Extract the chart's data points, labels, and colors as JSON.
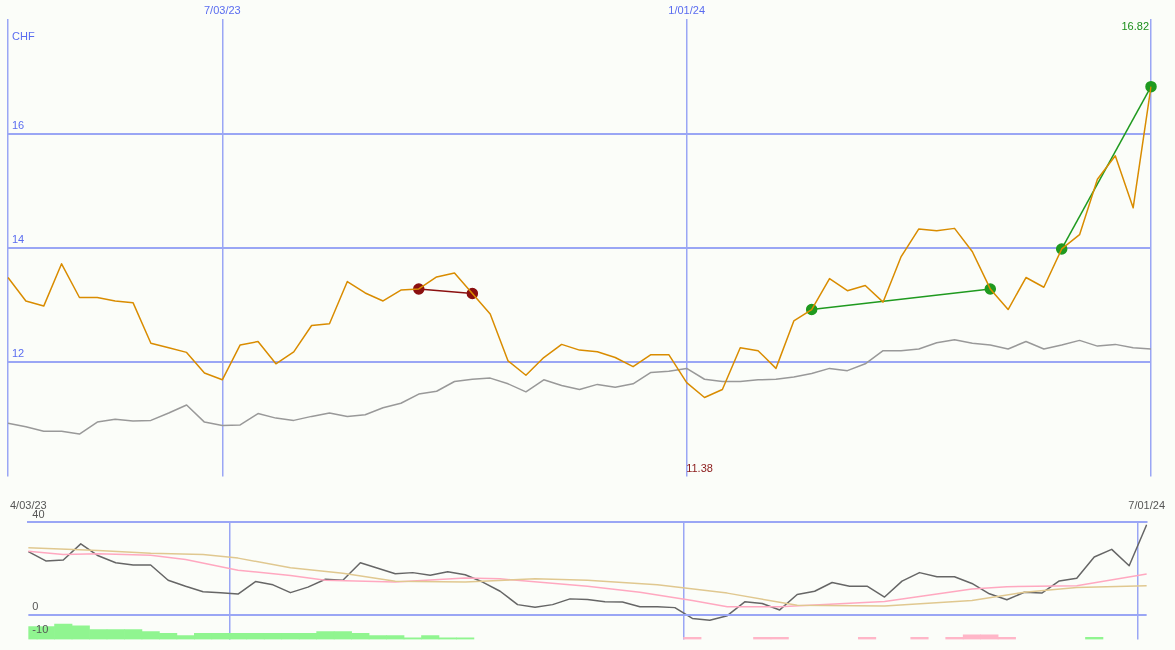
{
  "chart_data": [
    {
      "type": "line",
      "ylabel": "CHF",
      "grid": true,
      "marker": "none",
      "categories": [
        null,
        null,
        null,
        null,
        null,
        null,
        null,
        null,
        null,
        null,
        null,
        null,
        "7/03/23",
        null,
        null,
        null,
        null,
        null,
        null,
        null,
        null,
        null,
        null,
        null,
        null,
        null,
        null,
        null,
        null,
        null,
        null,
        null,
        null,
        null,
        null,
        null,
        null,
        null,
        "1/01/24",
        null,
        null,
        null,
        null,
        null,
        null,
        null,
        null,
        null,
        null,
        null,
        null,
        null,
        null,
        null,
        null,
        null,
        null,
        null,
        null,
        null,
        null,
        null,
        null,
        null,
        null
      ],
      "ylim": [
        10,
        18
      ],
      "yticks": [
        12,
        14,
        16
      ],
      "series": [
        {
          "color": "#d98c00",
          "values": [
            13.48,
            13.07,
            12.98,
            13.72,
            13.13,
            13.13,
            13.07,
            13.04,
            12.33,
            12.25,
            12.17,
            11.81,
            11.69,
            12.3,
            12.36,
            11.97,
            12.18,
            12.64,
            12.67,
            13.41,
            13.21,
            13.07,
            13.26,
            13.28,
            13.49,
            13.56,
            13.2,
            12.84,
            12.02,
            11.77,
            12.08,
            12.31,
            12.21,
            12.18,
            12.08,
            11.92,
            12.13,
            12.13,
            11.64,
            11.38,
            11.52,
            12.25,
            12.2,
            11.89,
            12.72,
            12.92,
            13.46,
            13.25,
            13.34,
            13.05,
            13.84,
            14.33,
            14.3,
            14.34,
            13.93,
            13.28,
            12.92,
            13.48,
            13.31,
            13.98,
            14.23,
            15.2,
            15.61,
            14.7,
            16.82
          ]
        },
        {
          "color": "#999999",
          "values": [
            10.93,
            10.87,
            10.79,
            10.79,
            10.74,
            10.95,
            11.0,
            10.97,
            10.98,
            11.11,
            11.25,
            10.95,
            10.89,
            10.9,
            11.1,
            11.02,
            10.98,
            11.05,
            11.11,
            11.05,
            11.08,
            11.2,
            11.28,
            11.44,
            11.49,
            11.66,
            11.7,
            11.72,
            11.62,
            11.48,
            11.69,
            11.59,
            11.52,
            11.61,
            11.56,
            11.62,
            11.82,
            11.84,
            11.89,
            11.7,
            11.66,
            11.66,
            11.69,
            11.7,
            11.74,
            11.8,
            11.89,
            11.85,
            11.97,
            12.2,
            12.2,
            12.23,
            12.34,
            12.39,
            12.33,
            12.3,
            12.23,
            12.36,
            12.23,
            12.3,
            12.38,
            12.28,
            12.31,
            12.25,
            12.23
          ]
        },
        {
          "color": "#8b1010",
          "marker": "circle",
          "values": [
            null,
            null,
            null,
            null,
            null,
            null,
            null,
            null,
            null,
            null,
            null,
            null,
            null,
            null,
            null,
            null,
            null,
            null,
            null,
            null,
            null,
            null,
            null,
            13.28,
            null,
            null,
            13.2,
            null,
            null,
            null,
            null,
            null,
            null,
            null,
            null,
            null,
            null,
            null,
            null,
            null,
            null,
            null,
            null,
            null,
            null,
            null,
            null,
            null,
            null,
            null,
            null,
            null,
            null,
            null,
            null,
            null,
            null,
            null,
            null,
            null,
            null,
            null,
            null,
            null,
            null
          ]
        },
        {
          "color": "#1f9a1f",
          "marker": "circle",
          "values": [
            null,
            null,
            null,
            null,
            null,
            null,
            null,
            null,
            null,
            null,
            null,
            null,
            null,
            null,
            null,
            null,
            null,
            null,
            null,
            null,
            null,
            null,
            null,
            null,
            null,
            null,
            null,
            null,
            null,
            null,
            null,
            null,
            null,
            null,
            null,
            null,
            null,
            null,
            null,
            null,
            null,
            null,
            null,
            null,
            null,
            12.92,
            null,
            null,
            null,
            null,
            null,
            null,
            null,
            null,
            null,
            13.28,
            null,
            null,
            null,
            null,
            null,
            null,
            null,
            null,
            null
          ]
        },
        {
          "color": "#1f9a1f",
          "marker": "circle",
          "values": [
            null,
            null,
            null,
            null,
            null,
            null,
            null,
            null,
            null,
            null,
            null,
            null,
            null,
            null,
            null,
            null,
            null,
            null,
            null,
            null,
            null,
            null,
            null,
            null,
            null,
            null,
            null,
            null,
            null,
            null,
            null,
            null,
            null,
            null,
            null,
            null,
            null,
            null,
            null,
            null,
            null,
            null,
            null,
            null,
            null,
            null,
            null,
            null,
            null,
            null,
            null,
            null,
            null,
            null,
            null,
            null,
            null,
            null,
            null,
            13.98,
            null,
            null,
            null,
            null,
            16.82
          ]
        }
      ],
      "annotations": [
        "16.82",
        "11.38"
      ]
    },
    {
      "type": "line",
      "grid": "x",
      "marker": "none",
      "ref_lines": [
        {
          "axis": "y",
          "value": 0
        }
      ],
      "categories": [
        "4/03/23",
        null,
        null,
        null,
        null,
        null,
        null,
        null,
        null,
        null,
        null,
        null,
        null,
        null,
        null,
        null,
        null,
        null,
        null,
        null,
        null,
        null,
        null,
        null,
        null,
        null,
        null,
        null,
        null,
        null,
        null,
        null,
        null,
        null,
        null,
        null,
        null,
        null,
        null,
        null,
        null,
        null,
        null,
        null,
        null,
        null,
        null,
        null,
        null,
        null,
        null,
        null,
        null,
        null,
        null,
        null,
        null,
        null,
        null,
        null,
        null,
        null,
        null,
        null,
        "7/01/24"
      ],
      "ylim": [
        -10.6,
        40.3
      ],
      "yticks": [
        -10,
        0,
        40
      ],
      "series": [
        {
          "type": "bar",
          "color": "#90f590",
          "values": [
            5.6,
            5.6,
            6.7,
            5.9,
            4.3,
            4.3,
            4.3,
            3.4,
            2.6,
            1.7,
            2.6,
            2.6,
            2.6,
            2.6,
            2.6,
            2.6,
            2.6,
            3.4,
            3.4,
            2.6,
            1.7,
            1.7,
            0.7,
            1.7,
            0.7,
            0.7,
            null,
            null,
            null,
            null,
            null,
            null,
            null,
            null,
            null,
            null,
            null,
            null,
            null,
            null,
            null,
            null,
            null,
            null,
            null,
            null,
            null,
            null,
            null,
            null,
            null,
            null,
            null,
            null,
            null,
            null,
            null,
            null,
            null,
            null,
            null,
            0.9,
            null,
            null,
            null
          ],
          "base": [
            -10.6,
            -10.6,
            -10.6,
            -10.6,
            -10.6,
            -10.6,
            -10.6,
            -10.6,
            -10.6,
            -10.6,
            -10.6,
            -10.6,
            -10.6,
            -10.6,
            -10.6,
            -10.6,
            -10.6,
            -10.6,
            -10.6,
            -10.6,
            -10.6,
            -10.6,
            -10.6,
            -10.6,
            -10.6,
            -10.6,
            null,
            null,
            null,
            null,
            null,
            null,
            null,
            null,
            null,
            null,
            null,
            null,
            null,
            null,
            null,
            null,
            null,
            null,
            null,
            null,
            null,
            null,
            null,
            null,
            null,
            null,
            null,
            null,
            null,
            null,
            null,
            null,
            null,
            null,
            null,
            -10.6,
            null,
            null,
            null
          ]
        },
        {
          "type": "bar",
          "color": "#ffb6c8",
          "values": [
            null,
            null,
            null,
            null,
            null,
            null,
            null,
            null,
            null,
            null,
            null,
            null,
            null,
            null,
            null,
            null,
            null,
            null,
            null,
            null,
            null,
            null,
            null,
            null,
            null,
            null,
            null,
            null,
            null,
            null,
            null,
            null,
            null,
            null,
            null,
            null,
            null,
            null,
            0.9,
            null,
            null,
            null,
            0.9,
            0.9,
            null,
            null,
            null,
            null,
            0.9,
            null,
            null,
            0.9,
            null,
            0.9,
            2.0,
            2.0,
            0.9,
            null,
            null,
            null,
            null,
            null,
            null,
            null,
            null
          ],
          "base": [
            null,
            null,
            null,
            null,
            null,
            null,
            null,
            null,
            null,
            null,
            null,
            null,
            null,
            null,
            null,
            null,
            null,
            null,
            null,
            null,
            null,
            null,
            null,
            null,
            null,
            null,
            null,
            null,
            null,
            null,
            null,
            null,
            null,
            null,
            null,
            null,
            null,
            null,
            -10.6,
            null,
            null,
            null,
            -10.6,
            -10.6,
            null,
            null,
            null,
            null,
            -10.6,
            null,
            null,
            -10.6,
            null,
            -10.6,
            -10.6,
            -10.6,
            -10.6,
            null,
            null,
            null,
            null,
            null,
            null,
            null,
            null
          ]
        },
        {
          "color": "#e0c890",
          "values": [
            29.2,
            null,
            null,
            null,
            28.0,
            null,
            null,
            26.8,
            null,
            null,
            26.3,
            null,
            24.7,
            null,
            null,
            20.5,
            null,
            null,
            18.1,
            null,
            null,
            14.7,
            null,
            null,
            null,
            14.3,
            null,
            null,
            null,
            15.7,
            null,
            null,
            15.1,
            null,
            null,
            null,
            13.1,
            null,
            null,
            null,
            9.5,
            null,
            null,
            null,
            4.2,
            null,
            null,
            null,
            null,
            3.9,
            null,
            null,
            null,
            null,
            6.3,
            null,
            null,
            9.9,
            null,
            null,
            11.9,
            null,
            null,
            null,
            12.7
          ]
        },
        {
          "color": "#ffa8c0",
          "values": [
            27.7,
            null,
            26.3,
            null,
            26.6,
            null,
            null,
            25.9,
            null,
            24.1,
            null,
            null,
            19.4,
            null,
            null,
            17.2,
            null,
            15.1,
            null,
            null,
            null,
            14.3,
            null,
            null,
            null,
            16.1,
            null,
            15.7,
            null,
            null,
            null,
            null,
            12.5,
            null,
            null,
            9.9,
            null,
            null,
            6.3,
            null,
            3.6,
            null,
            null,
            3.6,
            null,
            null,
            null,
            null,
            null,
            5.9,
            null,
            null,
            null,
            null,
            11.3,
            null,
            12.3,
            null,
            null,
            null,
            12.7,
            null,
            null,
            null,
            17.8
          ]
        },
        {
          "color": "#666666",
          "values": [
            27.5,
            23.5,
            23.9,
            30.9,
            25.7,
            22.7,
            21.7,
            21.7,
            15.1,
            12.5,
            10.1,
            9.7,
            9.1,
            14.5,
            13.1,
            9.7,
            12.1,
            15.5,
            15.1,
            22.7,
            20.3,
            17.9,
            18.4,
            17.3,
            18.8,
            17.5,
            14.3,
            10.3,
            4.5,
            3.4,
            4.5,
            7.0,
            6.7,
            5.7,
            5.6,
            3.6,
            3.6,
            3.2,
            -1.5,
            -2.3,
            -0.3,
            5.7,
            5.0,
            2.2,
            8.9,
            10.3,
            14.1,
            12.5,
            12.5,
            7.8,
            14.7,
            18.4,
            16.6,
            16.6,
            13.7,
            9.2,
            6.6,
            9.9,
            9.5,
            14.8,
            16.0,
            25.2,
            28.5,
            21.4,
            39.2
          ]
        }
      ]
    }
  ]
}
